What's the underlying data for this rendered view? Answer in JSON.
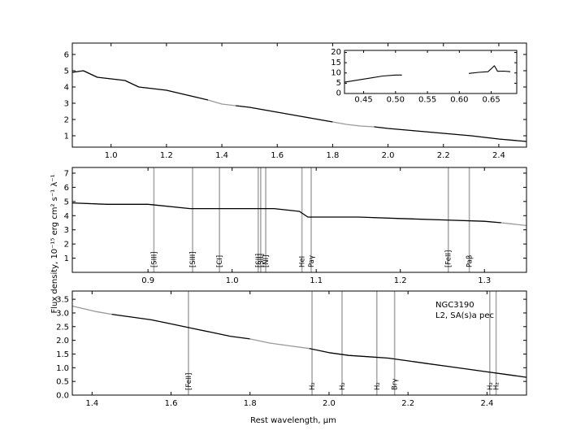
{
  "figure": {
    "xlabel": "Rest wavelength, μm",
    "ylabel": "Flux density, 10⁻¹⁵ erg cm² s⁻¹ λ⁻¹",
    "object_name": "NGC3190",
    "object_class": "L2,  SA(s)a pec"
  },
  "chart_data": [
    {
      "type": "line",
      "panel": "top",
      "xlim": [
        0.86,
        2.5
      ],
      "ylim": [
        0.3,
        6.7
      ],
      "xticks": [
        "1.0",
        "1.2",
        "1.4",
        "1.6",
        "1.8",
        "2.0",
        "2.2",
        "2.4"
      ],
      "yticks": [
        "1",
        "2",
        "3",
        "4",
        "5",
        "6"
      ],
      "series": [
        {
          "segment": "black",
          "x": [
            0.86,
            0.9,
            0.95,
            1.0,
            1.05,
            1.1,
            1.15,
            1.2,
            1.25,
            1.3,
            1.35
          ],
          "y": [
            4.9,
            5.0,
            4.6,
            4.5,
            4.4,
            4.0,
            3.9,
            3.8,
            3.6,
            3.4,
            3.2
          ]
        },
        {
          "segment": "gray",
          "x": [
            1.35,
            1.4,
            1.45
          ],
          "y": [
            3.2,
            2.95,
            2.85
          ]
        },
        {
          "segment": "black",
          "x": [
            1.45,
            1.5,
            1.55,
            1.6,
            1.65,
            1.7,
            1.75,
            1.8
          ],
          "y": [
            2.85,
            2.75,
            2.6,
            2.45,
            2.3,
            2.15,
            2.0,
            1.85
          ]
        },
        {
          "segment": "gray",
          "x": [
            1.8,
            1.85,
            1.9,
            1.95
          ],
          "y": [
            1.85,
            1.7,
            1.6,
            1.55
          ]
        },
        {
          "segment": "black",
          "x": [
            1.95,
            2.0,
            2.1,
            2.2,
            2.3,
            2.4,
            2.5
          ],
          "y": [
            1.55,
            1.45,
            1.3,
            1.15,
            1.0,
            0.8,
            0.65
          ]
        }
      ],
      "inset": {
        "xlim": [
          0.42,
          0.69
        ],
        "ylim": [
          0,
          21
        ],
        "xticks": [
          "0.45",
          "0.50",
          "0.55",
          "0.60",
          "0.65"
        ],
        "yticks": [
          "0",
          "5",
          "10",
          "15",
          "20"
        ],
        "series": [
          {
            "x": [
              0.42,
              0.44,
              0.46,
              0.48,
              0.5,
              0.51
            ],
            "y": [
              5.5,
              6.5,
              7.5,
              8.5,
              9,
              9
            ]
          },
          {
            "x": [
              0.615,
              0.63,
              0.645,
              0.655,
              0.66,
              0.67,
              0.68
            ],
            "y": [
              9.8,
              10.3,
              10.6,
              13.5,
              10.8,
              10.9,
              10.6
            ]
          }
        ]
      }
    },
    {
      "type": "line",
      "panel": "middle",
      "xlim": [
        0.81,
        1.35
      ],
      "ylim": [
        0,
        7.4
      ],
      "xticks": [
        "0.9",
        "1.0",
        "1.1",
        "1.2",
        "1.3"
      ],
      "yticks": [
        "1",
        "2",
        "3",
        "4",
        "5",
        "6",
        "7"
      ],
      "series": [
        {
          "segment": "black",
          "x": [
            0.81,
            0.85,
            0.9,
            0.95,
            1.0,
            1.05,
            1.08,
            1.09,
            1.15,
            1.2,
            1.25,
            1.3,
            1.32
          ],
          "y": [
            4.9,
            4.8,
            4.8,
            4.5,
            4.5,
            4.5,
            4.3,
            3.9,
            3.9,
            3.8,
            3.7,
            3.6,
            3.5
          ]
        },
        {
          "segment": "gray",
          "x": [
            1.32,
            1.335,
            1.35
          ],
          "y": [
            3.5,
            3.4,
            3.3
          ]
        }
      ],
      "lines": [
        {
          "label": "[SIII]",
          "x": 0.907
        },
        {
          "label": "[SIII]",
          "x": 0.953
        },
        {
          "label": "[CI]",
          "x": 0.985
        },
        {
          "label": "[SII]",
          "x": 1.031
        },
        {
          "label": "[SII]",
          "x": 1.034
        },
        {
          "label": "[NI]",
          "x": 1.04
        },
        {
          "label": "HeI",
          "x": 1.083
        },
        {
          "label": "Paγ",
          "x": 1.094
        },
        {
          "label": "[FeII]",
          "x": 1.257
        },
        {
          "label": "Paβ",
          "x": 1.282
        }
      ]
    },
    {
      "type": "line",
      "panel": "bottom",
      "xlim": [
        1.35,
        2.5
      ],
      "ylim": [
        0,
        3.8
      ],
      "xticks": [
        "1.4",
        "1.6",
        "1.8",
        "2.0",
        "2.2",
        "2.4"
      ],
      "yticks": [
        "0.0",
        "0.5",
        "1.0",
        "1.5",
        "2.0",
        "2.5",
        "3.0",
        "3.5"
      ],
      "series": [
        {
          "segment": "gray",
          "x": [
            1.35,
            1.38,
            1.41,
            1.45
          ],
          "y": [
            3.25,
            3.15,
            3.05,
            2.95
          ]
        },
        {
          "segment": "black",
          "x": [
            1.45,
            1.5,
            1.55,
            1.6,
            1.65,
            1.7,
            1.75,
            1.8
          ],
          "y": [
            2.95,
            2.85,
            2.75,
            2.6,
            2.45,
            2.3,
            2.15,
            2.05
          ]
        },
        {
          "segment": "gray",
          "x": [
            1.8,
            1.85,
            1.9,
            1.95
          ],
          "y": [
            2.05,
            1.9,
            1.8,
            1.7
          ]
        },
        {
          "segment": "black",
          "x": [
            1.95,
            2.0,
            2.05,
            2.1,
            2.15,
            2.2,
            2.25,
            2.3,
            2.35,
            2.4,
            2.45,
            2.5
          ],
          "y": [
            1.7,
            1.55,
            1.45,
            1.4,
            1.35,
            1.25,
            1.15,
            1.05,
            0.95,
            0.85,
            0.75,
            0.65
          ]
        }
      ],
      "lines": [
        {
          "label": "[FeII]",
          "x": 1.644
        },
        {
          "label": "H₂",
          "x": 1.957
        },
        {
          "label": "H₂",
          "x": 2.033
        },
        {
          "label": "H₂",
          "x": 2.121
        },
        {
          "label": "Brγ",
          "x": 2.166
        },
        {
          "label": "H₂",
          "x": 2.407
        },
        {
          "label": "H₂",
          "x": 2.423
        }
      ]
    }
  ]
}
